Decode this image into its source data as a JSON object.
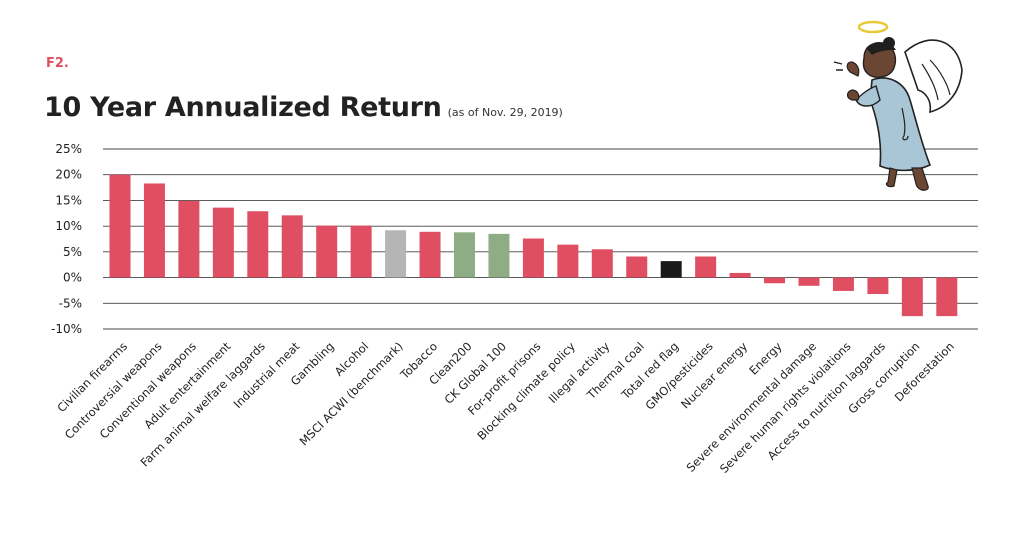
{
  "figure": {
    "label": "F2.",
    "title": "10 Year Annualized Return",
    "subtitle": "(as of Nov. 29, 2019)"
  },
  "colors": {
    "default": "#e04e62",
    "benchmark": "#b5b5b5",
    "clean": "#8fad85",
    "total": "#1a1a1a",
    "grid": "#444444",
    "figure_label": "#e04e62"
  },
  "illustration": {
    "icon": "angel-figure-icon"
  },
  "chart_data": {
    "type": "bar",
    "title": "10 Year Annualized Return",
    "subtitle": "(as of Nov. 29, 2019)",
    "ylim": [
      -10,
      25
    ],
    "yticks": [
      25,
      20,
      15,
      10,
      5,
      0,
      -5,
      -10
    ],
    "ytick_labels": [
      "25%",
      "20%",
      "15%",
      "10%",
      "5%",
      "0%",
      "-5%",
      "-10%"
    ],
    "grid": true,
    "categories": [
      "Civilian firearms",
      "Controversial weapons",
      "Conventional weapons",
      "Adult entertainment",
      "Farm animal welfare laggards",
      "Industrial meat",
      "Gambling",
      "Alcohol",
      "MSCI ACWI (benchmark)",
      "Tobacco",
      "Clean200",
      "CK Global 100",
      "For-profit prisons",
      "Blocking climate policy",
      "Illegal activity",
      "Thermal coal",
      "Total red flag",
      "GMO/pesticides",
      "Nuclear energy",
      "Energy",
      "Severe environmental damage",
      "Severe human rights violations",
      "Access to nutrition laggards",
      "Gross corruption",
      "Deforestation"
    ],
    "values": [
      20.0,
      18.3,
      14.9,
      13.6,
      12.9,
      12.1,
      10.1,
      10.1,
      9.2,
      8.9,
      8.8,
      8.5,
      7.6,
      6.4,
      5.5,
      4.1,
      3.2,
      4.1,
      0.9,
      -1.1,
      -1.6,
      -2.6,
      -3.2,
      -7.5,
      -7.5
    ],
    "bar_colors": [
      "default",
      "default",
      "default",
      "default",
      "default",
      "default",
      "default",
      "default",
      "benchmark",
      "default",
      "clean",
      "clean",
      "default",
      "default",
      "default",
      "default",
      "total",
      "default",
      "default",
      "default",
      "default",
      "default",
      "default",
      "default",
      "default"
    ]
  }
}
